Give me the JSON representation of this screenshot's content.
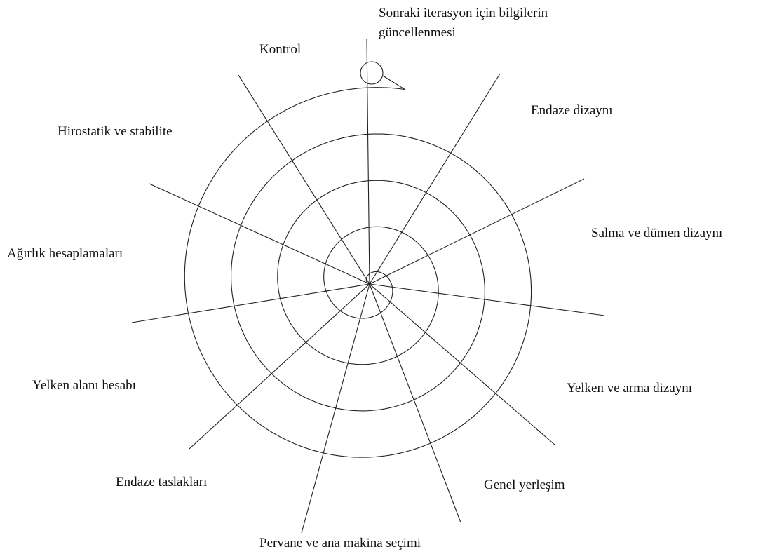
{
  "start": {
    "lines": [
      "Sonraki iterasyon için bilgilerin",
      "güncellenmesi"
    ]
  },
  "nodes": [
    {
      "label": "Kontrol"
    },
    {
      "label": "Endaze dizaynı"
    },
    {
      "label": "Hirostatik ve stabilite"
    },
    {
      "label": "Salma ve dümen dizaynı"
    },
    {
      "label": "Ağırlık hesaplamaları"
    },
    {
      "label": "Yelken alanı hesabı"
    },
    {
      "label": "Yelken ve arma dizaynı"
    },
    {
      "label": "Endaze taslakları"
    },
    {
      "label": "Genel yerleşim"
    },
    {
      "label": "Pervane ve ana makina seçimi"
    }
  ]
}
